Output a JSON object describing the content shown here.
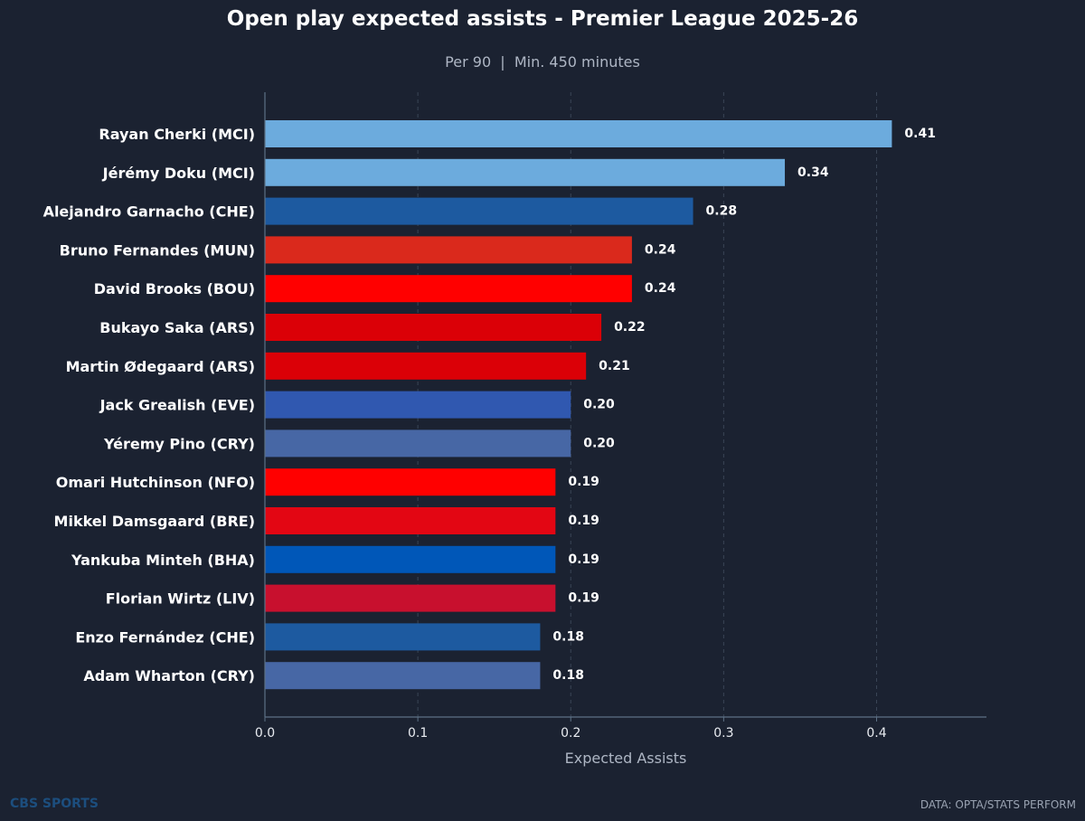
{
  "chart_data": {
    "type": "bar",
    "orientation": "horizontal",
    "title": "Open play expected assists - Premier League 2025-26",
    "subtitle": "Per 90  |  Min. 450 minutes",
    "xlabel": "Expected Assists",
    "ylabel": "",
    "xlim": [
      0,
      0.472
    ],
    "xticks": [
      "0.0",
      "0.1",
      "0.2",
      "0.3",
      "0.4"
    ],
    "grid": "vertical dashed",
    "categories": [
      "Rayan Cherki (MCI)",
      "Jérémy Doku (MCI)",
      "Alejandro Garnacho (CHE)",
      "Bruno Fernandes (MUN)",
      "David Brooks (BOU)",
      "Bukayo Saka (ARS)",
      "Martin Ødegaard (ARS)",
      "Jack Grealish (EVE)",
      "Yéremy Pino (CRY)",
      "Omari Hutchinson (NFO)",
      "Mikkel Damsgaard (BRE)",
      "Yankuba Minteh (BHA)",
      "Florian Wirtz (LIV)",
      "Enzo Fernández (CHE)",
      "Adam Wharton (CRY)"
    ],
    "values": [
      0.41,
      0.34,
      0.28,
      0.24,
      0.24,
      0.22,
      0.21,
      0.2,
      0.2,
      0.19,
      0.19,
      0.19,
      0.19,
      0.18,
      0.18
    ],
    "value_labels": [
      "0.41",
      "0.34",
      "0.28",
      "0.24",
      "0.24",
      "0.22",
      "0.21",
      "0.20",
      "0.20",
      "0.19",
      "0.19",
      "0.19",
      "0.19",
      "0.18",
      "0.18"
    ],
    "bar_colors": [
      "#6cabdd",
      "#6cabdd",
      "#1d5aa0",
      "#da291c",
      "#ff0000",
      "#db0007",
      "#db0007",
      "#3058b0",
      "#4767a5",
      "#ff0000",
      "#e30613",
      "#0057b8",
      "#c8102e",
      "#1d5aa0",
      "#4767a5"
    ]
  },
  "footer": {
    "brand": "CBS SPORTS",
    "source": "DATA: OPTA/STATS PERFORM"
  },
  "colors": {
    "background": "#1b2231",
    "text": "#ffffff",
    "muted_text": "#aeb6c4",
    "axis": "#5d7186",
    "grid": "#3a4556",
    "brand": "#1c4e7e"
  }
}
